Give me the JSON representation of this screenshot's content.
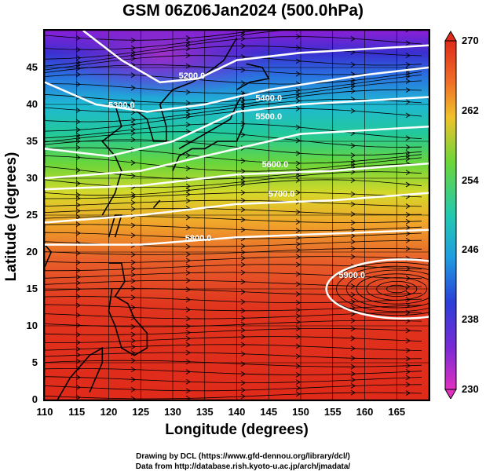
{
  "title": "GSM 06Z06Jan2024 (500.0hPa)",
  "xlabel": "Longitude (degrees)",
  "ylabel": "Latitude  (degrees)",
  "x_ticks": [
    "110",
    "115",
    "120",
    "125",
    "130",
    "135",
    "140",
    "145",
    "150",
    "155",
    "160",
    "165"
  ],
  "y_ticks": [
    "45",
    "40",
    "35",
    "30",
    "25",
    "20",
    "15",
    "10",
    "5",
    "0"
  ],
  "colorbar_ticks": [
    "270",
    "262",
    "254",
    "246",
    "238",
    "230"
  ],
  "contour_labels": [
    "5200.0",
    "5300.0",
    "5400.0",
    "5500.0",
    "5600.0",
    "5700.0",
    "5800.0",
    "5900.0"
  ],
  "credits": {
    "line1": "Drawing by DCL (https://www.gfd-dennou.org/library/dcl/)",
    "line2": "Data from http://database.rish.kyoto-u.ac.jp/arch/jmadata/"
  },
  "colors": {
    "cold": "#8a1fd6",
    "cool": "#2a3fd8",
    "mid": "#22c3b4",
    "warm": "#8fd82a",
    "hot": "#e02a1a",
    "contour": "#ffffff"
  },
  "chart_data": {
    "type": "heatmap",
    "title": "GSM 06Z06Jan2024 (500.0hPa)",
    "xlabel": "Longitude (degrees)",
    "ylabel": "Latitude  (degrees)",
    "xlim": [
      110,
      170
    ],
    "ylim": [
      0,
      50
    ],
    "colorbar": {
      "min": 230,
      "max": 270,
      "ticks": [
        270,
        262,
        254,
        246,
        238,
        230
      ]
    },
    "contours": [
      {
        "label": "5200.0",
        "lon": 133,
        "lat": 43.5
      },
      {
        "label": "5300.0",
        "lon": 122,
        "lat": 39.5
      },
      {
        "label": "5400.0",
        "lon": 145,
        "lat": 40.5
      },
      {
        "label": "5500.0",
        "lon": 145,
        "lat": 38
      },
      {
        "label": "5600.0",
        "lon": 146,
        "lat": 31.5
      },
      {
        "label": "5700.0",
        "lon": 147,
        "lat": 27.5
      },
      {
        "label": "5800.0",
        "lon": 134,
        "lat": 21.5
      },
      {
        "label": "5900.0",
        "lon": 158,
        "lat": 16.5
      }
    ]
  }
}
